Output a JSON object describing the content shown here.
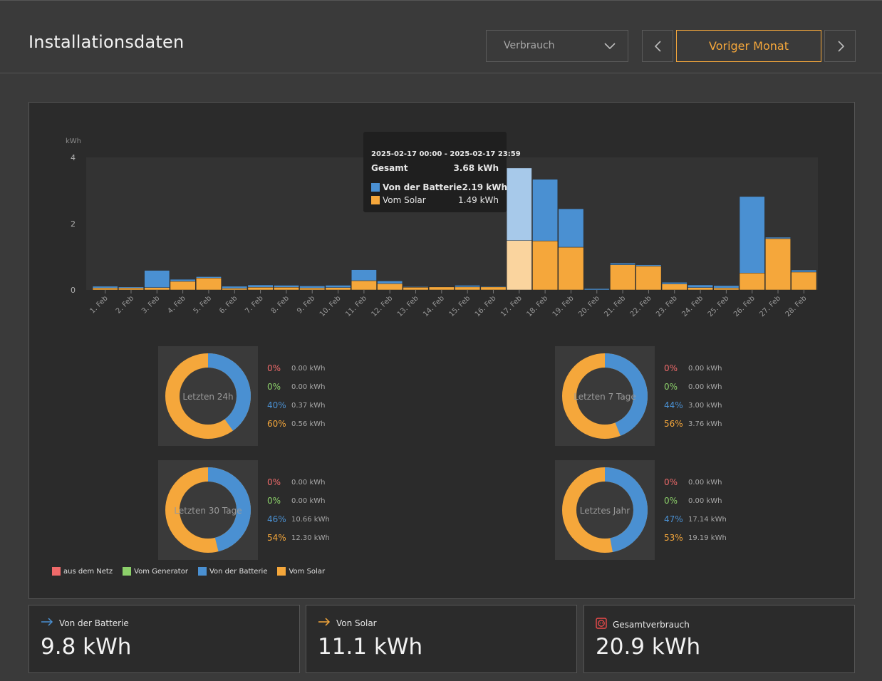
{
  "header": {
    "title": "Installationsdaten",
    "select_value": "Verbrauch",
    "prev_period_label": "Voriger Monat"
  },
  "chart_data": {
    "type": "bar",
    "stacked": true,
    "ylabel": "kWh",
    "yticks": [
      0,
      2,
      4
    ],
    "ylim": [
      0,
      4
    ],
    "categories": [
      "1. Feb",
      "2. Feb",
      "3. Feb",
      "4. Feb",
      "5. Feb",
      "6. Feb",
      "7. Feb",
      "8. Feb",
      "9. Feb",
      "10. Feb",
      "11. Feb",
      "12. Feb",
      "13. Feb",
      "14. Feb",
      "15. Feb",
      "16. Feb",
      "17. Feb",
      "18. Feb",
      "19. Feb",
      "20. Feb",
      "21. Feb",
      "22. Feb",
      "23. Feb",
      "24. Feb",
      "25. Feb",
      "26. Feb",
      "27. Feb",
      "28. Feb"
    ],
    "series": [
      {
        "name": "Vom Solar",
        "color": "#f5a73b",
        "values": [
          0.06,
          0.06,
          0.07,
          0.26,
          0.36,
          0.05,
          0.08,
          0.08,
          0.06,
          0.07,
          0.28,
          0.19,
          0.08,
          0.09,
          0.09,
          0.09,
          1.49,
          1.48,
          1.29,
          0.0,
          0.76,
          0.72,
          0.18,
          0.07,
          0.06,
          0.51,
          1.55,
          0.54
        ]
      },
      {
        "name": "Von der Batterie",
        "color": "#4a90d2",
        "values": [
          0.05,
          0.03,
          0.52,
          0.06,
          0.04,
          0.06,
          0.07,
          0.06,
          0.06,
          0.07,
          0.33,
          0.08,
          0.02,
          0.01,
          0.05,
          0.02,
          2.19,
          1.86,
          1.16,
          0.04,
          0.05,
          0.04,
          0.05,
          0.08,
          0.07,
          2.31,
          0.04,
          0.06
        ]
      }
    ],
    "highlight_index": 16,
    "grid": false,
    "legend_position": "bottom-left"
  },
  "tooltip": {
    "range": "2025-02-17 00:00 - 2025-02-17 23:59",
    "total_label": "Gesamt",
    "total_value": "3.68 kWh",
    "rows": [
      {
        "label": "Von der Batterie",
        "value": "2.19 kWh",
        "color": "#4a90d2",
        "bold": true
      },
      {
        "label": "Vom Solar",
        "value": "1.49 kWh",
        "color": "#f5a73b",
        "bold": false
      }
    ]
  },
  "donuts": [
    {
      "label": "Letzten 24h",
      "battery_fraction": 0.4,
      "stats": [
        {
          "pct": "0%",
          "value": "0.00 kWh",
          "color": "#ef6a6a"
        },
        {
          "pct": "0%",
          "value": "0.00 kWh",
          "color": "#8cd06a"
        },
        {
          "pct": "40%",
          "value": "0.37 kWh",
          "color": "#4a90d2"
        },
        {
          "pct": "60%",
          "value": "0.56 kWh",
          "color": "#f5a73b"
        }
      ]
    },
    {
      "label": "Letzten 7 Tage",
      "battery_fraction": 0.44,
      "stats": [
        {
          "pct": "0%",
          "value": "0.00 kWh",
          "color": "#ef6a6a"
        },
        {
          "pct": "0%",
          "value": "0.00 kWh",
          "color": "#8cd06a"
        },
        {
          "pct": "44%",
          "value": "3.00 kWh",
          "color": "#4a90d2"
        },
        {
          "pct": "56%",
          "value": "3.76 kWh",
          "color": "#f5a73b"
        }
      ]
    },
    {
      "label": "Letzten 30 Tage",
      "battery_fraction": 0.46,
      "stats": [
        {
          "pct": "0%",
          "value": "0.00 kWh",
          "color": "#ef6a6a"
        },
        {
          "pct": "0%",
          "value": "0.00 kWh",
          "color": "#8cd06a"
        },
        {
          "pct": "46%",
          "value": "10.66 kWh",
          "color": "#4a90d2"
        },
        {
          "pct": "54%",
          "value": "12.30 kWh",
          "color": "#f5a73b"
        }
      ]
    },
    {
      "label": "Letztes Jahr",
      "battery_fraction": 0.47,
      "stats": [
        {
          "pct": "0%",
          "value": "0.00 kWh",
          "color": "#ef6a6a"
        },
        {
          "pct": "0%",
          "value": "0.00 kWh",
          "color": "#8cd06a"
        },
        {
          "pct": "47%",
          "value": "17.14 kWh",
          "color": "#4a90d2"
        },
        {
          "pct": "53%",
          "value": "19.19 kWh",
          "color": "#f5a73b"
        }
      ]
    }
  ],
  "legend": [
    {
      "label": "aus dem Netz",
      "color": "#ef6a6a"
    },
    {
      "label": "Vom Generator",
      "color": "#8cd06a"
    },
    {
      "label": "Von der Batterie",
      "color": "#4a90d2"
    },
    {
      "label": "Vom Solar",
      "color": "#f5a73b"
    }
  ],
  "cards": [
    {
      "label": "Von der Batterie",
      "value": "9.8 kWh",
      "icon": "arrow-right-icon",
      "icon_color": "#4a90d2"
    },
    {
      "label": "Von Solar",
      "value": "11.1 kWh",
      "icon": "arrow-right-icon",
      "icon_color": "#f5a73b"
    },
    {
      "label": "Gesamtverbrauch",
      "value": "20.9 kWh",
      "icon": "outlet-icon",
      "icon_color": "#ef4b4b"
    }
  ]
}
